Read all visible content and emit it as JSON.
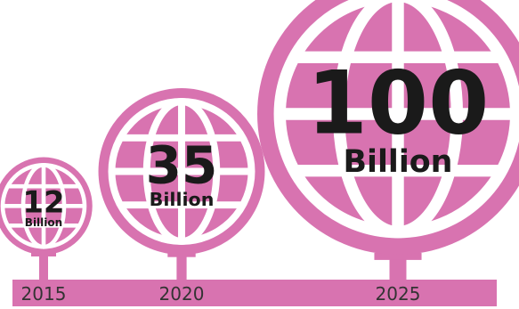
{
  "chart_data": {
    "type": "bubble",
    "categories": [
      "2015",
      "2020",
      "2025"
    ],
    "values": [
      12,
      35,
      100
    ],
    "value_labels": [
      "12",
      "35",
      "100"
    ],
    "unit_labels": [
      "Billion",
      "Billion",
      "Billion"
    ]
  },
  "colors": {
    "globe": "#d873b0",
    "grid": "#ffffff",
    "text": "#1a1a1a",
    "year_text": "#333333"
  },
  "icons": [
    "globe-icon"
  ]
}
